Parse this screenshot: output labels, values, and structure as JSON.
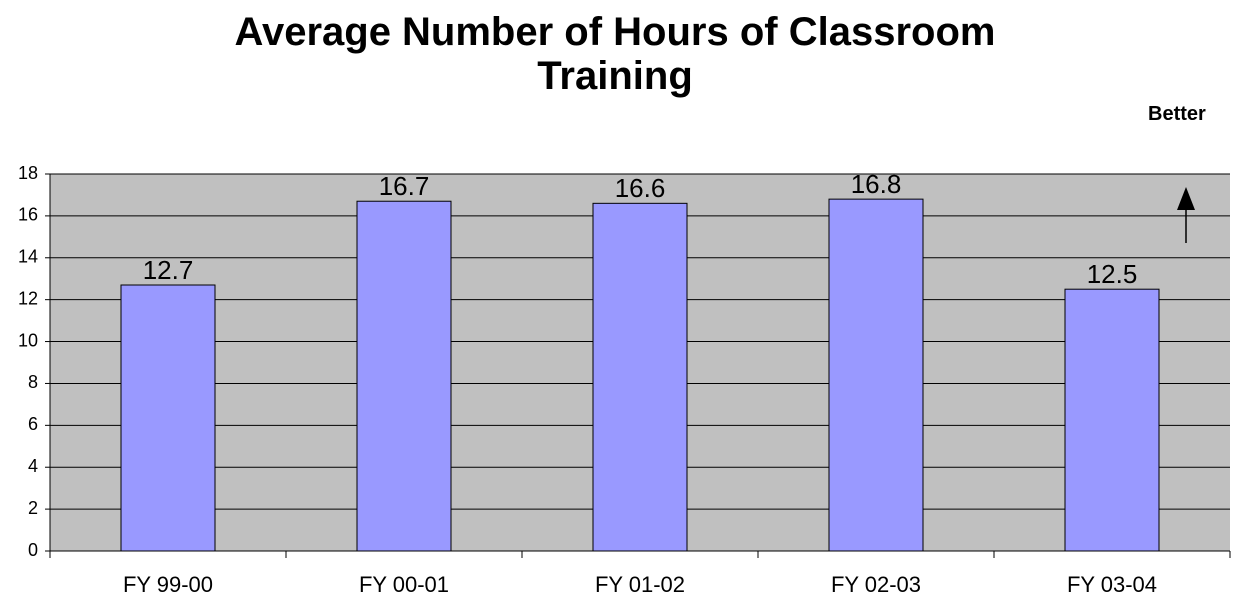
{
  "chart_data": {
    "type": "bar",
    "title": "Average Number of Hours of Classroom Training",
    "annotation": "Better",
    "categories": [
      "FY 99-00",
      "FY 00-01",
      "FY 01-02",
      "FY 02-03",
      "FY 03-04"
    ],
    "values": [
      12.7,
      16.7,
      16.6,
      16.8,
      12.5
    ],
    "color": "#9999ff",
    "ylim": [
      0,
      18
    ],
    "yticks": [
      0,
      2,
      4,
      6,
      8,
      10,
      12,
      14,
      16,
      18
    ],
    "grid": true
  }
}
